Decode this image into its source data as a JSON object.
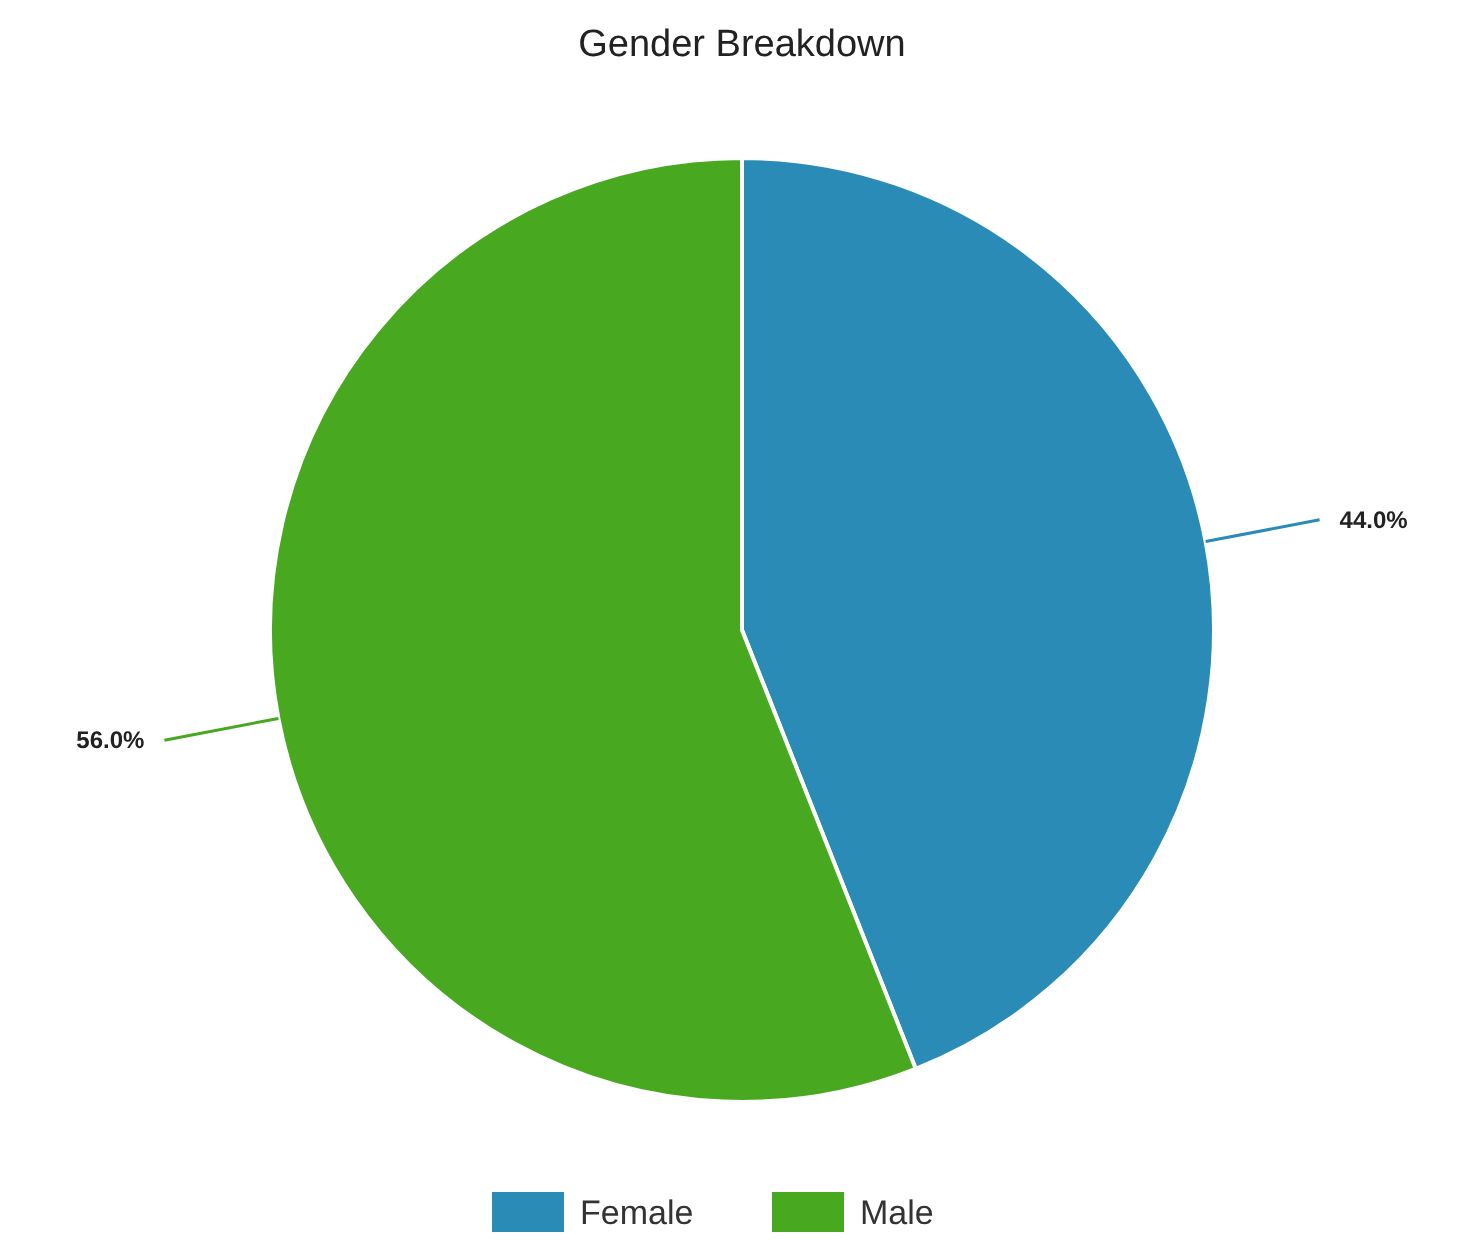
{
  "chart_data": {
    "type": "pie",
    "title": "Gender Breakdown",
    "categories": [
      "Female",
      "Male"
    ],
    "values": [
      44.0,
      56.0
    ],
    "colors": [
      "#2a8bb6",
      "#48a920"
    ],
    "value_labels": [
      "44.0%",
      "56.0%"
    ],
    "legend": "bottom"
  }
}
